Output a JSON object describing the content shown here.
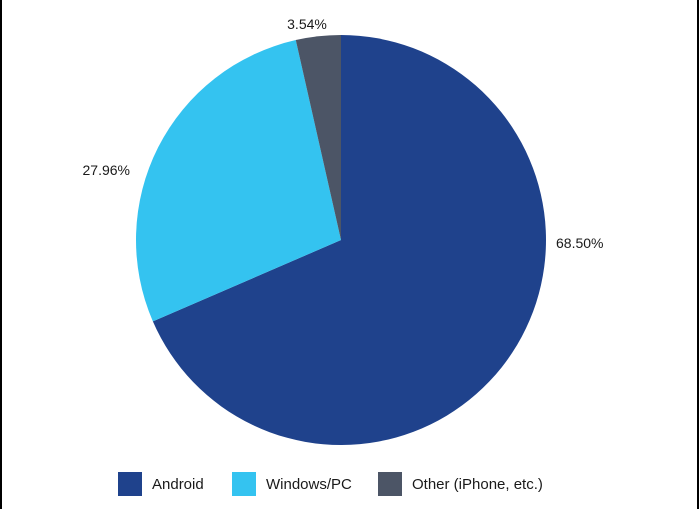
{
  "chart_data": {
    "type": "pie",
    "slices": [
      {
        "label": "Android",
        "value": 68.5,
        "display": "68.50%",
        "color": "#1f428c"
      },
      {
        "label": "Windows/PC",
        "value": 27.96,
        "display": "27.96%",
        "color": "#34c3f0"
      },
      {
        "label": "Other (iPhone, etc.)",
        "value": 3.54,
        "display": "3.54%",
        "color": "#4c5566"
      }
    ],
    "start": "12 o'clock",
    "direction": "clockwise",
    "legend_position": "bottom"
  }
}
